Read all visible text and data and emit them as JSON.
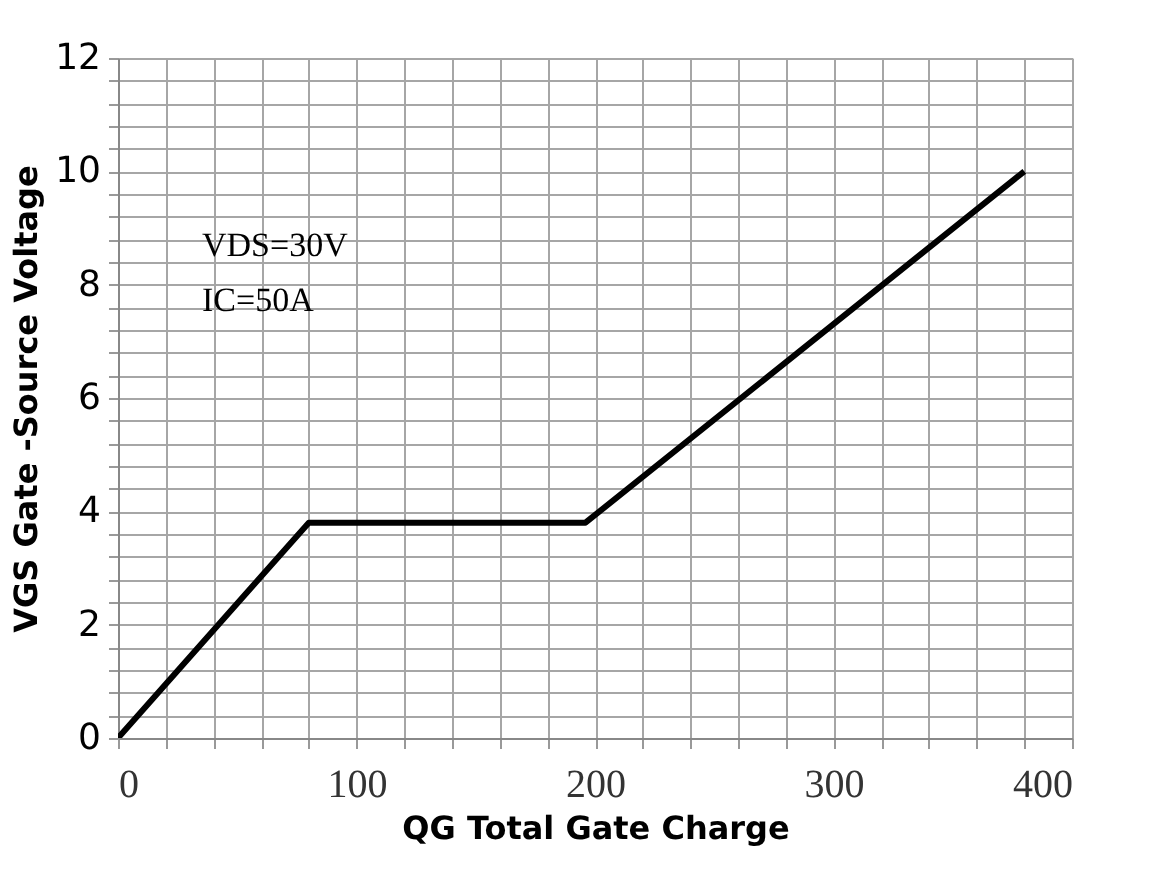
{
  "chart_data": {
    "type": "line",
    "xlabel": "QG Total Gate Charge",
    "ylabel": "VGS  Gate -Source Voltage",
    "x": [
      0,
      80,
      196,
      380
    ],
    "series": [
      {
        "color": "#000000",
        "values": [
          0,
          3.8,
          3.8,
          10
        ]
      }
    ],
    "xlim": [
      0,
      400
    ],
    "xticks": [
      0,
      {
        "value": 20,
        "label": null
      },
      {
        "value": 40,
        "label": null
      },
      {
        "value": 60,
        "label": null
      },
      {
        "value": 80,
        "label": null
      },
      100,
      {
        "value": 120,
        "label": null
      },
      {
        "value": 140,
        "label": null
      },
      {
        "value": 160,
        "label": null
      },
      {
        "value": 180,
        "label": null
      },
      200,
      {
        "value": 220,
        "label": null
      },
      {
        "value": 240,
        "label": null
      },
      {
        "value": 260,
        "label": null
      },
      {
        "value": 280,
        "label": null
      },
      300,
      {
        "value": 320,
        "label": null
      },
      {
        "value": 340,
        "label": null
      },
      {
        "value": 360,
        "label": null
      },
      {
        "value": 380,
        "label": null
      },
      400
    ],
    "ylim": [
      0,
      12
    ],
    "yticks": [
      0,
      {
        "value": 0.4,
        "label": null
      },
      {
        "value": 0.8,
        "label": null
      },
      {
        "value": 1.2,
        "label": null
      },
      {
        "value": 1.6,
        "label": null
      },
      2,
      {
        "value": 2.4,
        "label": null
      },
      {
        "value": 2.8,
        "label": null
      },
      {
        "value": 3.2,
        "label": null
      },
      {
        "value": 3.6,
        "label": null
      },
      4,
      {
        "value": 4.4,
        "label": null
      },
      {
        "value": 4.8,
        "label": null
      },
      {
        "value": 5.2,
        "label": null
      },
      {
        "value": 5.6,
        "label": null
      },
      6,
      {
        "value": 6.4,
        "label": null
      },
      {
        "value": 6.8,
        "label": null
      },
      {
        "value": 7.2,
        "label": null
      },
      {
        "value": 7.6,
        "label": null
      },
      8,
      {
        "value": 8.4,
        "label": null
      },
      {
        "value": 8.8,
        "label": null
      },
      {
        "value": 9.2,
        "label": null
      },
      {
        "value": 9.6,
        "label": null
      },
      10,
      {
        "value": 10.4,
        "label": null
      },
      {
        "value": 10.8,
        "label": null
      },
      {
        "value": 11.2,
        "label": null
      },
      {
        "value": 11.6,
        "label": null
      },
      12
    ],
    "annotations": [
      "VDS=30V",
      "IC=50A"
    ],
    "grid": true,
    "marker": "none",
    "line_style": "solid"
  }
}
